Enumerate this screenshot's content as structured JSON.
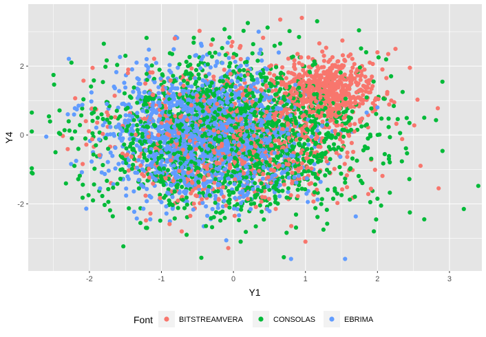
{
  "chart_data": {
    "type": "scatter",
    "xlabel": "Y1",
    "ylabel": "Y4",
    "xlim": [
      -2.85,
      3.45
    ],
    "ylim": [
      -3.95,
      3.8
    ],
    "x_ticks": [
      -2,
      -1,
      0,
      1,
      2,
      3
    ],
    "y_ticks": [
      -2,
      0,
      2
    ],
    "x_tick_labels": [
      "-2",
      "-1",
      "0",
      "1",
      "2",
      "3"
    ],
    "y_tick_labels": [
      "-2",
      "0",
      "2"
    ],
    "grid": true,
    "background": "#e5e5e5",
    "legend": {
      "title": "Font",
      "position": "bottom",
      "entries": [
        "BITSTREAMVERA",
        "CONSOLAS",
        "EBRIMA"
      ]
    },
    "series": [
      {
        "name": "BITSTREAMVERA",
        "color": "#f8766d",
        "n": 1500,
        "cluster_center": [
          1.3,
          1.3
        ],
        "points": [
          [
            2.25,
            2.5
          ],
          [
            2.0,
            2.4
          ],
          [
            2.45,
            1.95
          ],
          [
            2.15,
            2.35
          ],
          [
            0.95,
            3.4
          ],
          [
            0.65,
            3.35
          ],
          [
            2.85,
            -1.55
          ],
          [
            -2.05,
            0.4
          ],
          [
            -1.7,
            -1.4
          ],
          [
            -0.6,
            -2.35
          ],
          [
            1.0,
            -3.1
          ],
          [
            1.55,
            2.15
          ],
          [
            1.7,
            1.8
          ],
          [
            1.45,
            1.5
          ],
          [
            1.2,
            1.0
          ],
          [
            1.6,
            1.2
          ],
          [
            1.85,
            1.4
          ],
          [
            0.9,
            1.7
          ],
          [
            1.1,
            2.2
          ],
          [
            1.75,
            0.9
          ],
          [
            -1.2,
            -1.1
          ],
          [
            -0.9,
            1.2
          ],
          [
            0.4,
            -1.8
          ],
          [
            -1.5,
            -0.6
          ]
        ]
      },
      {
        "name": "CONSOLAS",
        "color": "#00ba38",
        "n": 1700,
        "cluster_center": [
          0.0,
          0.0
        ],
        "points": [
          [
            3.2,
            -2.15
          ],
          [
            2.65,
            0.5
          ],
          [
            2.35,
            1.25
          ],
          [
            2.65,
            -2.45
          ],
          [
            2.05,
            -2.05
          ],
          [
            1.95,
            -2.8
          ],
          [
            2.45,
            -2.25
          ],
          [
            -1.8,
            2.65
          ],
          [
            -2.25,
            2.1
          ],
          [
            0.2,
            3.25
          ],
          [
            0.7,
            -3.55
          ],
          [
            1.25,
            -2.75
          ],
          [
            0.1,
            -3.1
          ],
          [
            -0.65,
            -2.9
          ],
          [
            -1.2,
            -2.7
          ],
          [
            -2.2,
            0.1
          ],
          [
            -1.95,
            -1.9
          ],
          [
            1.9,
            -1.95
          ],
          [
            2.0,
            -1.85
          ],
          [
            -1.5,
            2.3
          ]
        ]
      },
      {
        "name": "EBRIMA",
        "color": "#619cff",
        "n": 1700,
        "cluster_center": [
          -0.3,
          0.0
        ],
        "points": [
          [
            -2.6,
            -0.05
          ],
          [
            -2.15,
            0.85
          ],
          [
            -2.3,
            0.6
          ],
          [
            1.55,
            -3.6
          ],
          [
            0.8,
            -3.6
          ],
          [
            -0.8,
            2.85
          ],
          [
            -0.45,
            2.65
          ],
          [
            0.35,
            3.0
          ],
          [
            1.85,
            0.65
          ],
          [
            2.0,
            0.8
          ],
          [
            -1.95,
            -0.5
          ],
          [
            -1.0,
            -1.95
          ]
        ]
      }
    ]
  }
}
